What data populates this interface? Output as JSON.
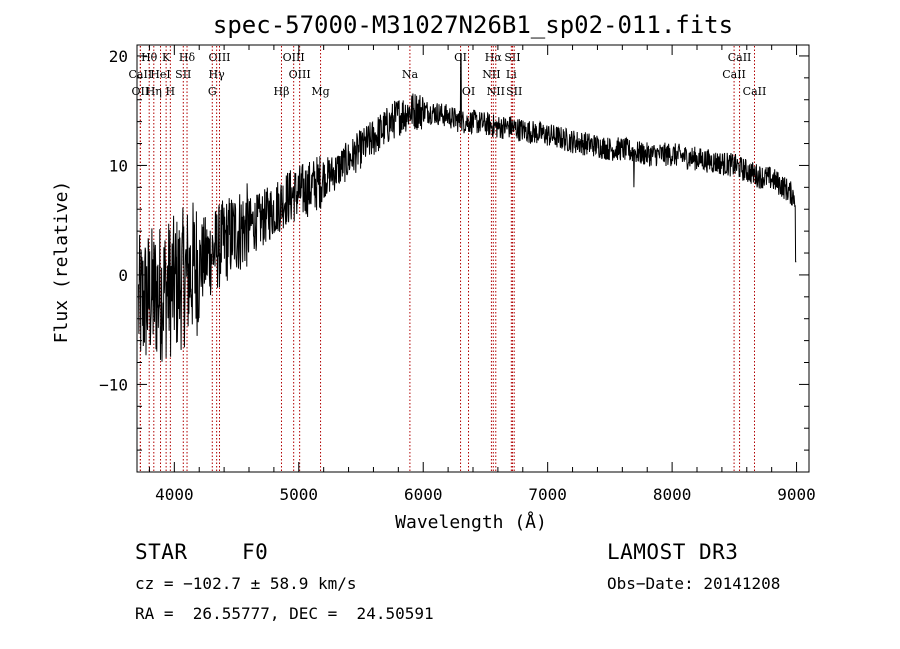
{
  "chart_data": {
    "type": "line",
    "title": "spec-57000-M31027N26B1_sp02-011.fits",
    "xlabel": "Wavelength (Å)",
    "ylabel": "Flux (relative)",
    "xlim": [
      3700,
      9100
    ],
    "ylim": [
      -18,
      21
    ],
    "x_ticks": [
      4000,
      5000,
      6000,
      7000,
      8000,
      9000
    ],
    "y_ticks": [
      -10,
      0,
      10,
      20
    ],
    "x_tick_labels": [
      "4000",
      "5000",
      "6000",
      "7000",
      "8000",
      "9000"
    ],
    "y_tick_labels": [
      "−10",
      "0",
      "10",
      "20"
    ],
    "grid": false,
    "series": [
      {
        "name": "spectrum",
        "x": [
          3700,
          3800,
          3900,
          4000,
          4100,
          4200,
          4300,
          4400,
          4500,
          4600,
          4700,
          4800,
          4900,
          5000,
          5100,
          5200,
          5300,
          5400,
          5500,
          5600,
          5700,
          5800,
          5900,
          6000,
          6100,
          6200,
          6300,
          6400,
          6500,
          6600,
          6700,
          6800,
          6900,
          7000,
          7100,
          7200,
          7300,
          7400,
          7500,
          7600,
          7700,
          7800,
          7900,
          8000,
          8100,
          8200,
          8300,
          8400,
          8500,
          8600,
          8700,
          8800,
          8900,
          9000
        ],
        "y": [
          -3,
          -2,
          -1.5,
          -1,
          0,
          1,
          2,
          3,
          4,
          4.5,
          5,
          6,
          7,
          7.5,
          8,
          8.8,
          9.5,
          10.5,
          11.5,
          12.5,
          13.5,
          14.5,
          15,
          15,
          14.8,
          14.5,
          14,
          14,
          13.8,
          13.5,
          13.5,
          13.2,
          13,
          12.8,
          12.5,
          12.2,
          12,
          11.8,
          11.5,
          11.5,
          11.2,
          11,
          11,
          11,
          10.8,
          10.6,
          10.4,
          10.2,
          10,
          9.5,
          9,
          8.8,
          8,
          7
        ]
      }
    ],
    "spectral_lines": [
      {
        "label": "Hθ",
        "wl": 3798,
        "row": 1
      },
      {
        "label": "K",
        "wl": 3934,
        "row": 1
      },
      {
        "label": "Hδ",
        "wl": 4102,
        "row": 1
      },
      {
        "label": "OIII",
        "wl": 4363,
        "row": 1
      },
      {
        "label": "OIII",
        "wl": 4959,
        "row": 1
      },
      {
        "label": "CI",
        "wl": 6300,
        "row": 1
      },
      {
        "label": "Hα",
        "wl": 6563,
        "row": 1
      },
      {
        "label": "SII",
        "wl": 6717,
        "row": 1
      },
      {
        "label": "CaII",
        "wl": 8542,
        "row": 1
      },
      {
        "label": "CaII",
        "wl": 3727,
        "row": 2
      },
      {
        "label": "HeI",
        "wl": 3889,
        "row": 2
      },
      {
        "label": "SII",
        "wl": 4072,
        "row": 2
      },
      {
        "label": "Hγ",
        "wl": 4340,
        "row": 2
      },
      {
        "label": "OIII",
        "wl": 5007,
        "row": 2
      },
      {
        "label": "Na",
        "wl": 5893,
        "row": 2
      },
      {
        "label": "NII",
        "wl": 6548,
        "row": 2
      },
      {
        "label": "Li",
        "wl": 6708,
        "row": 2
      },
      {
        "label": "CaII",
        "wl": 8498,
        "row": 2
      },
      {
        "label": "OII",
        "wl": 3727,
        "row": 3
      },
      {
        "label": "Hη",
        "wl": 3835,
        "row": 3
      },
      {
        "label": "H",
        "wl": 3968,
        "row": 3
      },
      {
        "label": "G",
        "wl": 4305,
        "row": 3
      },
      {
        "label": "Hβ",
        "wl": 4861,
        "row": 3
      },
      {
        "label": "Mg",
        "wl": 5175,
        "row": 3
      },
      {
        "label": "OI",
        "wl": 6364,
        "row": 3
      },
      {
        "label": "NII",
        "wl": 6583,
        "row": 3
      },
      {
        "label": "SII",
        "wl": 6731,
        "row": 3
      },
      {
        "label": "CaII",
        "wl": 8662,
        "row": 3
      }
    ]
  },
  "info": {
    "object_class": "STAR",
    "subclass": "F0",
    "survey": "LAMOST DR3",
    "cz": "cz = −102.7 ± 58.9 km/s",
    "obs_date": "Obs−Date: 20141208",
    "coords": "RA =  26.55777, DEC =  24.50591"
  }
}
